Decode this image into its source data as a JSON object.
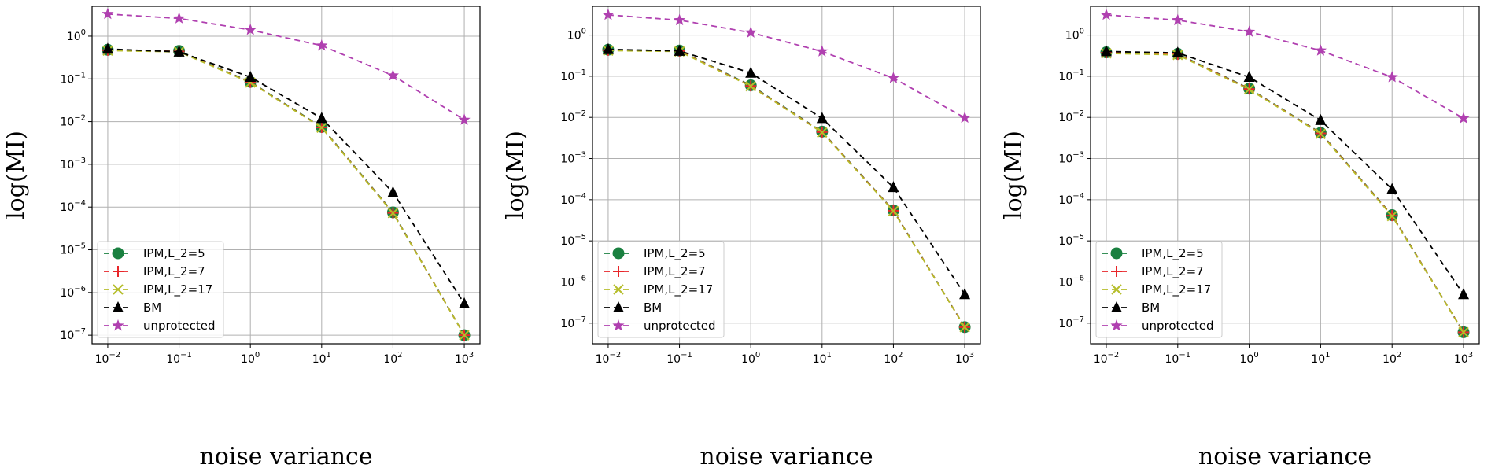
{
  "chart_data": [
    {
      "type": "line",
      "xscale": "log",
      "yscale": "log",
      "xlabel": "noise variance",
      "ylabel": "log(MI)",
      "xlim": [
        0.01,
        1000
      ],
      "ylim": [
        1e-07,
        5
      ],
      "grid": true,
      "legend_position": "lower-left",
      "x": [
        0.01,
        0.1,
        1,
        10,
        100,
        1000
      ],
      "series": [
        {
          "name": "IPM,L_2=5",
          "color": "#1a8040",
          "marker": "circle",
          "linestyle": "dashed",
          "values": [
            0.48,
            0.45,
            0.085,
            0.0075,
            7.5e-05,
            1e-07
          ]
        },
        {
          "name": "IPM,L_2=7",
          "color": "#e8262a",
          "marker": "plus",
          "linestyle": "dashed",
          "values": [
            0.47,
            0.44,
            0.083,
            0.0073,
            7.3e-05,
            1e-07
          ]
        },
        {
          "name": "IPM,L_2=17",
          "color": "#b5bd2a",
          "marker": "x",
          "linestyle": "dashed",
          "values": [
            0.46,
            0.43,
            0.082,
            0.0072,
            7.2e-05,
            1e-07
          ]
        },
        {
          "name": "BM",
          "color": "#000000",
          "marker": "triangle",
          "linestyle": "dashed",
          "values": [
            0.5,
            0.43,
            0.11,
            0.012,
            0.00022,
            5.5e-07
          ]
        },
        {
          "name": "unprotected",
          "color": "#b040b0",
          "marker": "star",
          "linestyle": "dashed",
          "values": [
            3.3,
            2.6,
            1.4,
            0.6,
            0.12,
            0.011
          ]
        }
      ]
    },
    {
      "type": "line",
      "xscale": "log",
      "yscale": "log",
      "xlabel": "noise variance",
      "ylabel": "log(MI)",
      "xlim": [
        0.01,
        1000
      ],
      "ylim": [
        5e-08,
        5
      ],
      "grid": true,
      "legend_position": "lower-left",
      "x": [
        0.01,
        0.1,
        1,
        10,
        100,
        1000
      ],
      "series": [
        {
          "name": "IPM,L_2=5",
          "color": "#1a8040",
          "marker": "circle",
          "linestyle": "dashed",
          "values": [
            0.44,
            0.42,
            0.06,
            0.0045,
            5.5e-05,
            8e-08
          ]
        },
        {
          "name": "IPM,L_2=7",
          "color": "#e8262a",
          "marker": "plus",
          "linestyle": "dashed",
          "values": [
            0.43,
            0.41,
            0.058,
            0.0044,
            5.4e-05,
            8e-08
          ]
        },
        {
          "name": "IPM,L_2=17",
          "color": "#b5bd2a",
          "marker": "x",
          "linestyle": "dashed",
          "values": [
            0.42,
            0.4,
            0.057,
            0.0043,
            5.3e-05,
            8e-08
          ]
        },
        {
          "name": "BM",
          "color": "#000000",
          "marker": "triangle",
          "linestyle": "dashed",
          "values": [
            0.45,
            0.41,
            0.12,
            0.0095,
            0.0002,
            5e-07
          ]
        },
        {
          "name": "unprotected",
          "color": "#b040b0",
          "marker": "star",
          "linestyle": "dashed",
          "values": [
            3.1,
            2.3,
            1.15,
            0.4,
            0.09,
            0.0098
          ]
        }
      ]
    },
    {
      "type": "line",
      "xscale": "log",
      "yscale": "log",
      "xlabel": "noise variance",
      "ylabel": "log(MI)",
      "xlim": [
        0.01,
        1000
      ],
      "ylim": [
        5e-08,
        5
      ],
      "grid": true,
      "legend_position": "lower-left",
      "x": [
        0.01,
        0.1,
        1,
        10,
        100,
        1000
      ],
      "series": [
        {
          "name": "IPM,L_2=5",
          "color": "#1a8040",
          "marker": "circle",
          "linestyle": "dashed",
          "values": [
            0.38,
            0.35,
            0.05,
            0.0042,
            4.2e-05,
            6e-08
          ]
        },
        {
          "name": "IPM,L_2=7",
          "color": "#e8262a",
          "marker": "plus",
          "linestyle": "dashed",
          "values": [
            0.37,
            0.34,
            0.049,
            0.0041,
            4.1e-05,
            6e-08
          ]
        },
        {
          "name": "IPM,L_2=17",
          "color": "#b5bd2a",
          "marker": "x",
          "linestyle": "dashed",
          "values": [
            0.36,
            0.33,
            0.048,
            0.004,
            4e-05,
            6e-08
          ]
        },
        {
          "name": "BM",
          "color": "#000000",
          "marker": "triangle",
          "linestyle": "dashed",
          "values": [
            0.4,
            0.37,
            0.095,
            0.0085,
            0.00018,
            5e-07
          ]
        },
        {
          "name": "unprotected",
          "color": "#b040b0",
          "marker": "star",
          "linestyle": "dashed",
          "values": [
            3.1,
            2.3,
            1.2,
            0.42,
            0.095,
            0.0095
          ]
        }
      ]
    }
  ]
}
